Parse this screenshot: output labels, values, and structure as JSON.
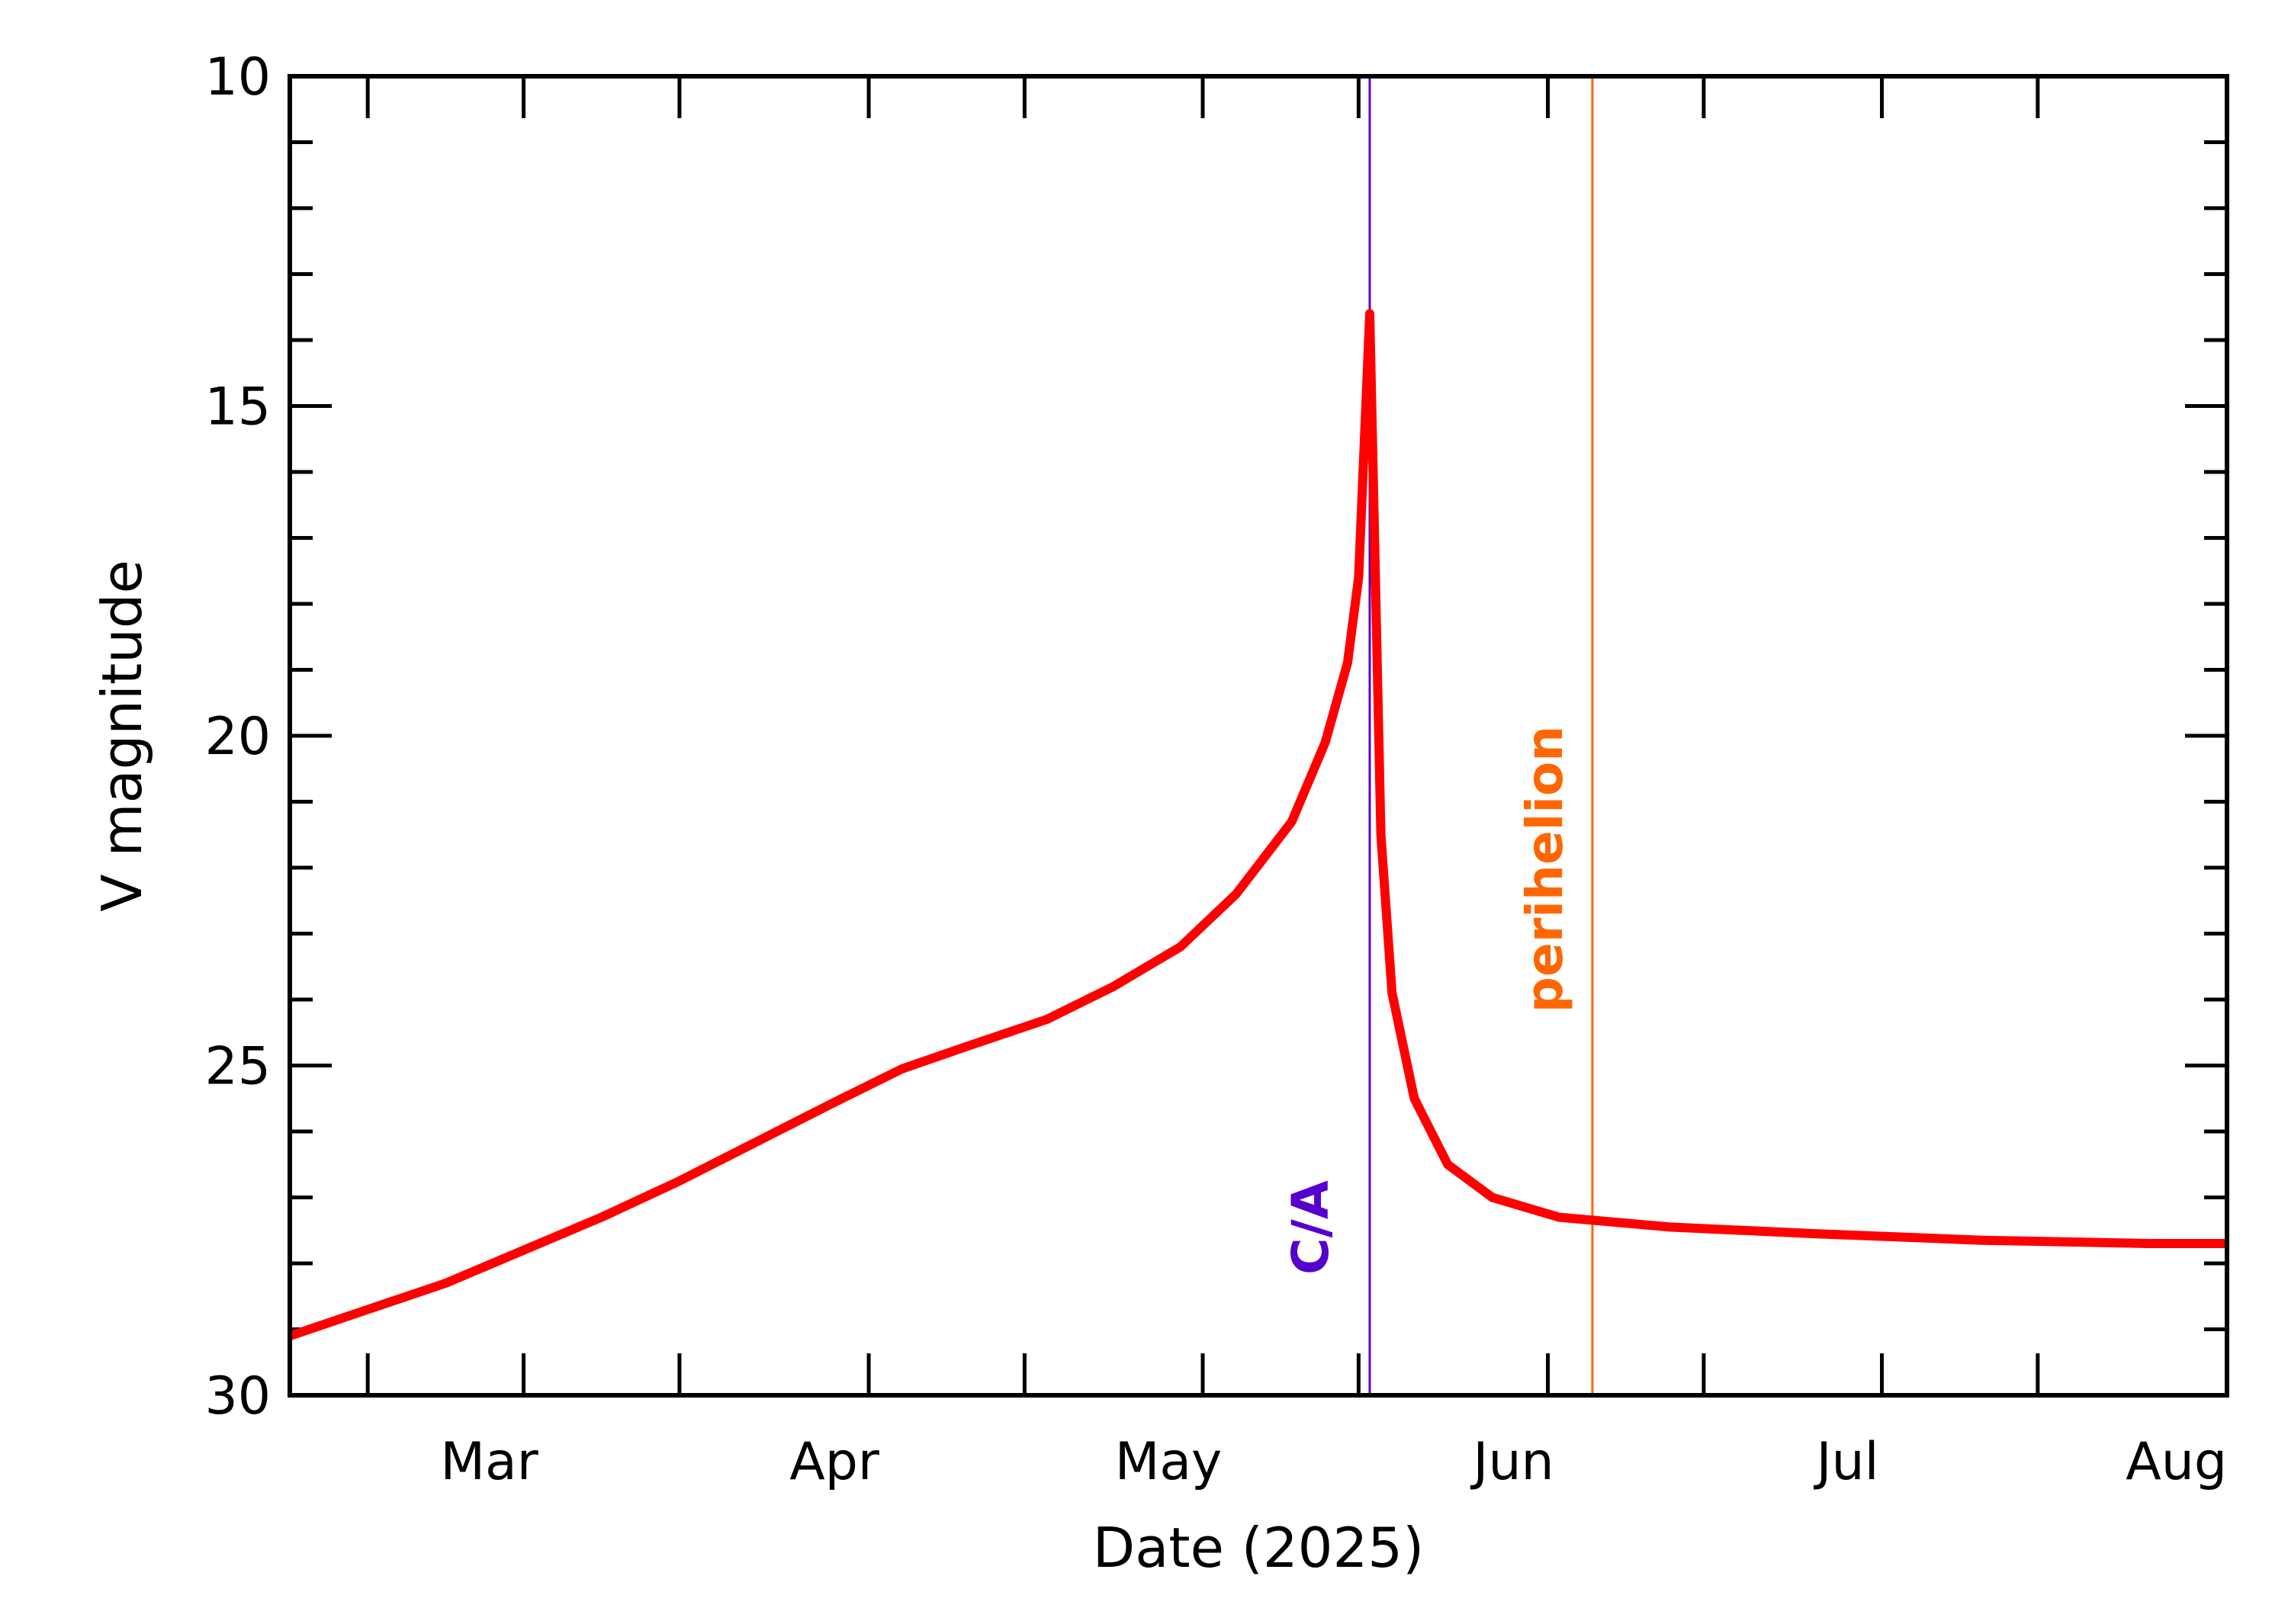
{
  "chart_data": {
    "type": "line",
    "title": "",
    "xlabel": "Date (2025)",
    "ylabel": "V magnitude",
    "xlim": [
      "2025-02-08",
      "2025-08-01"
    ],
    "ylim": [
      30,
      10
    ],
    "y_inverted": true,
    "x_ticks": [
      {
        "date": "2025-03-01",
        "label": "Mar"
      },
      {
        "date": "2025-04-01",
        "label": "Apr"
      },
      {
        "date": "2025-05-01",
        "label": "May"
      },
      {
        "date": "2025-06-01",
        "label": "Jun"
      },
      {
        "date": "2025-07-01",
        "label": "Jul"
      },
      {
        "date": "2025-08-01",
        "label": "Aug"
      }
    ],
    "y_ticks": [
      10,
      15,
      20,
      25,
      30
    ],
    "grid": false,
    "series": [
      {
        "color": "#ff0000",
        "points": [
          {
            "x": "2025-02-08",
            "y": 29.1
          },
          {
            "x": "2025-02-15",
            "y": 28.7
          },
          {
            "x": "2025-02-22",
            "y": 28.3
          },
          {
            "x": "2025-03-01",
            "y": 27.8
          },
          {
            "x": "2025-03-08",
            "y": 27.3
          },
          {
            "x": "2025-03-15",
            "y": 26.75
          },
          {
            "x": "2025-03-22",
            "y": 26.15
          },
          {
            "x": "2025-03-29",
            "y": 25.55
          },
          {
            "x": "2025-04-04",
            "y": 25.05
          },
          {
            "x": "2025-04-10",
            "y": 24.7
          },
          {
            "x": "2025-04-17",
            "y": 24.3
          },
          {
            "x": "2025-04-23",
            "y": 23.8
          },
          {
            "x": "2025-04-29",
            "y": 23.2
          },
          {
            "x": "2025-05-04",
            "y": 22.4
          },
          {
            "x": "2025-05-09",
            "y": 21.3
          },
          {
            "x": "2025-05-12",
            "y": 20.1
          },
          {
            "x": "2025-05-14",
            "y": 18.9
          },
          {
            "x": "2025-05-15",
            "y": 17.6
          },
          {
            "x": "2025-05-16",
            "y": 13.6
          },
          {
            "x": "2025-05-17",
            "y": 21.5
          },
          {
            "x": "2025-05-18",
            "y": 23.9
          },
          {
            "x": "2025-05-20",
            "y": 25.5
          },
          {
            "x": "2025-05-23",
            "y": 26.5
          },
          {
            "x": "2025-05-27",
            "y": 27.0
          },
          {
            "x": "2025-06-02",
            "y": 27.3
          },
          {
            "x": "2025-06-12",
            "y": 27.45
          },
          {
            "x": "2025-06-25",
            "y": 27.55
          },
          {
            "x": "2025-07-10",
            "y": 27.65
          },
          {
            "x": "2025-07-25",
            "y": 27.7
          },
          {
            "x": "2025-08-01",
            "y": 27.7
          }
        ]
      }
    ],
    "annotations": [
      {
        "label": "C/A",
        "date": "2025-05-16",
        "color": "#5500cc"
      },
      {
        "label": "perihelion",
        "date": "2025-06-05",
        "color": "#ff6600"
      }
    ]
  }
}
